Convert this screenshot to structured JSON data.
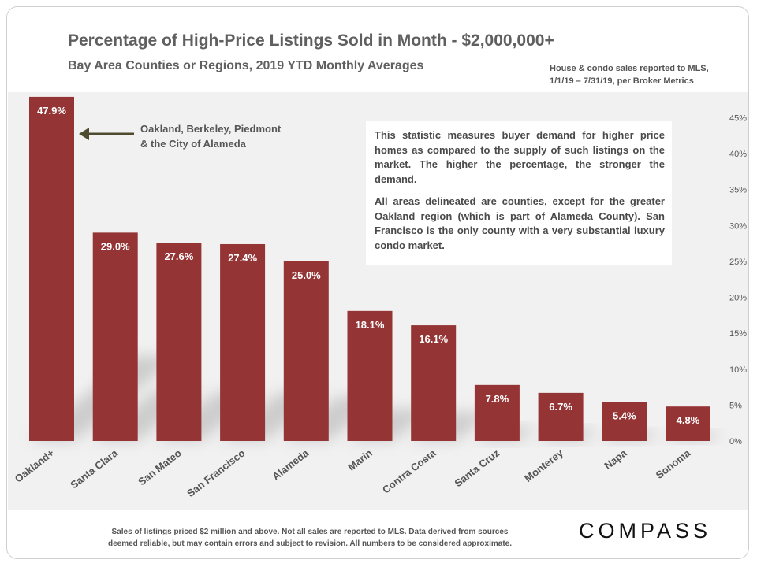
{
  "header": {
    "title": "Percentage of High-Price Listings Sold in Month - $2,000,000+",
    "subtitle": "Bay Area Counties or Regions, 2019 YTD Monthly Averages",
    "source_line1": "House & condo sales reported to MLS,",
    "source_line2": "1/1/19 – 7/31/19, per Broker Metrics"
  },
  "callout": {
    "line1": "Oakland, Berkeley, Piedmont",
    "line2": "& the City of Alameda"
  },
  "note": {
    "p1": "This statistic measures buyer demand for higher price homes as compared to the supply of such listings on the market. The higher the percentage, the stronger the demand.",
    "p2": "All areas delineated are counties, except for the greater Oakland region (which is part of Alameda County). San Francisco is the only county with a very substantial luxury condo market."
  },
  "footer": {
    "disclaimer_line1": "Sales of listings priced $2 million and above. Not all sales are reported to MLS. Data derived from sources",
    "disclaimer_line2": "deemed reliable, but may contain errors and subject to revision. All numbers to be considered approximate.",
    "logo": "COMPASS"
  },
  "colors": {
    "bar": "#953434",
    "bar_label": "#ffffff",
    "axis_text": "#555555",
    "arrow": "#4f4b2e"
  },
  "chart_data": {
    "type": "bar",
    "title": "Percentage of High-Price Listings Sold in Month - $2,000,000+",
    "subtitle": "Bay Area Counties or Regions, 2019 YTD Monthly Averages",
    "categories": [
      "Oakland+",
      "Santa Clara",
      "San Mateo",
      "San Francisco",
      "Alameda",
      "Marin",
      "Contra Costa",
      "Santa Cruz",
      "Monterey",
      "Napa",
      "Sonoma"
    ],
    "values": [
      47.9,
      29.0,
      27.6,
      27.4,
      25.0,
      18.1,
      16.1,
      7.8,
      6.7,
      5.4,
      4.8
    ],
    "data_labels": [
      "47.9%",
      "29.0%",
      "27.6%",
      "27.4%",
      "25.0%",
      "18.1%",
      "16.1%",
      "7.8%",
      "6.7%",
      "5.4%",
      "4.8%"
    ],
    "ylim": [
      0,
      48
    ],
    "yticks": [
      0,
      5,
      10,
      15,
      20,
      25,
      30,
      35,
      40,
      45
    ],
    "ytick_labels": [
      "0%",
      "5%",
      "10%",
      "15%",
      "20%",
      "25%",
      "30%",
      "35%",
      "40%",
      "45%"
    ],
    "y_axis_side": "right",
    "xlabel": "",
    "ylabel": "",
    "grid": false,
    "legend": "none"
  }
}
